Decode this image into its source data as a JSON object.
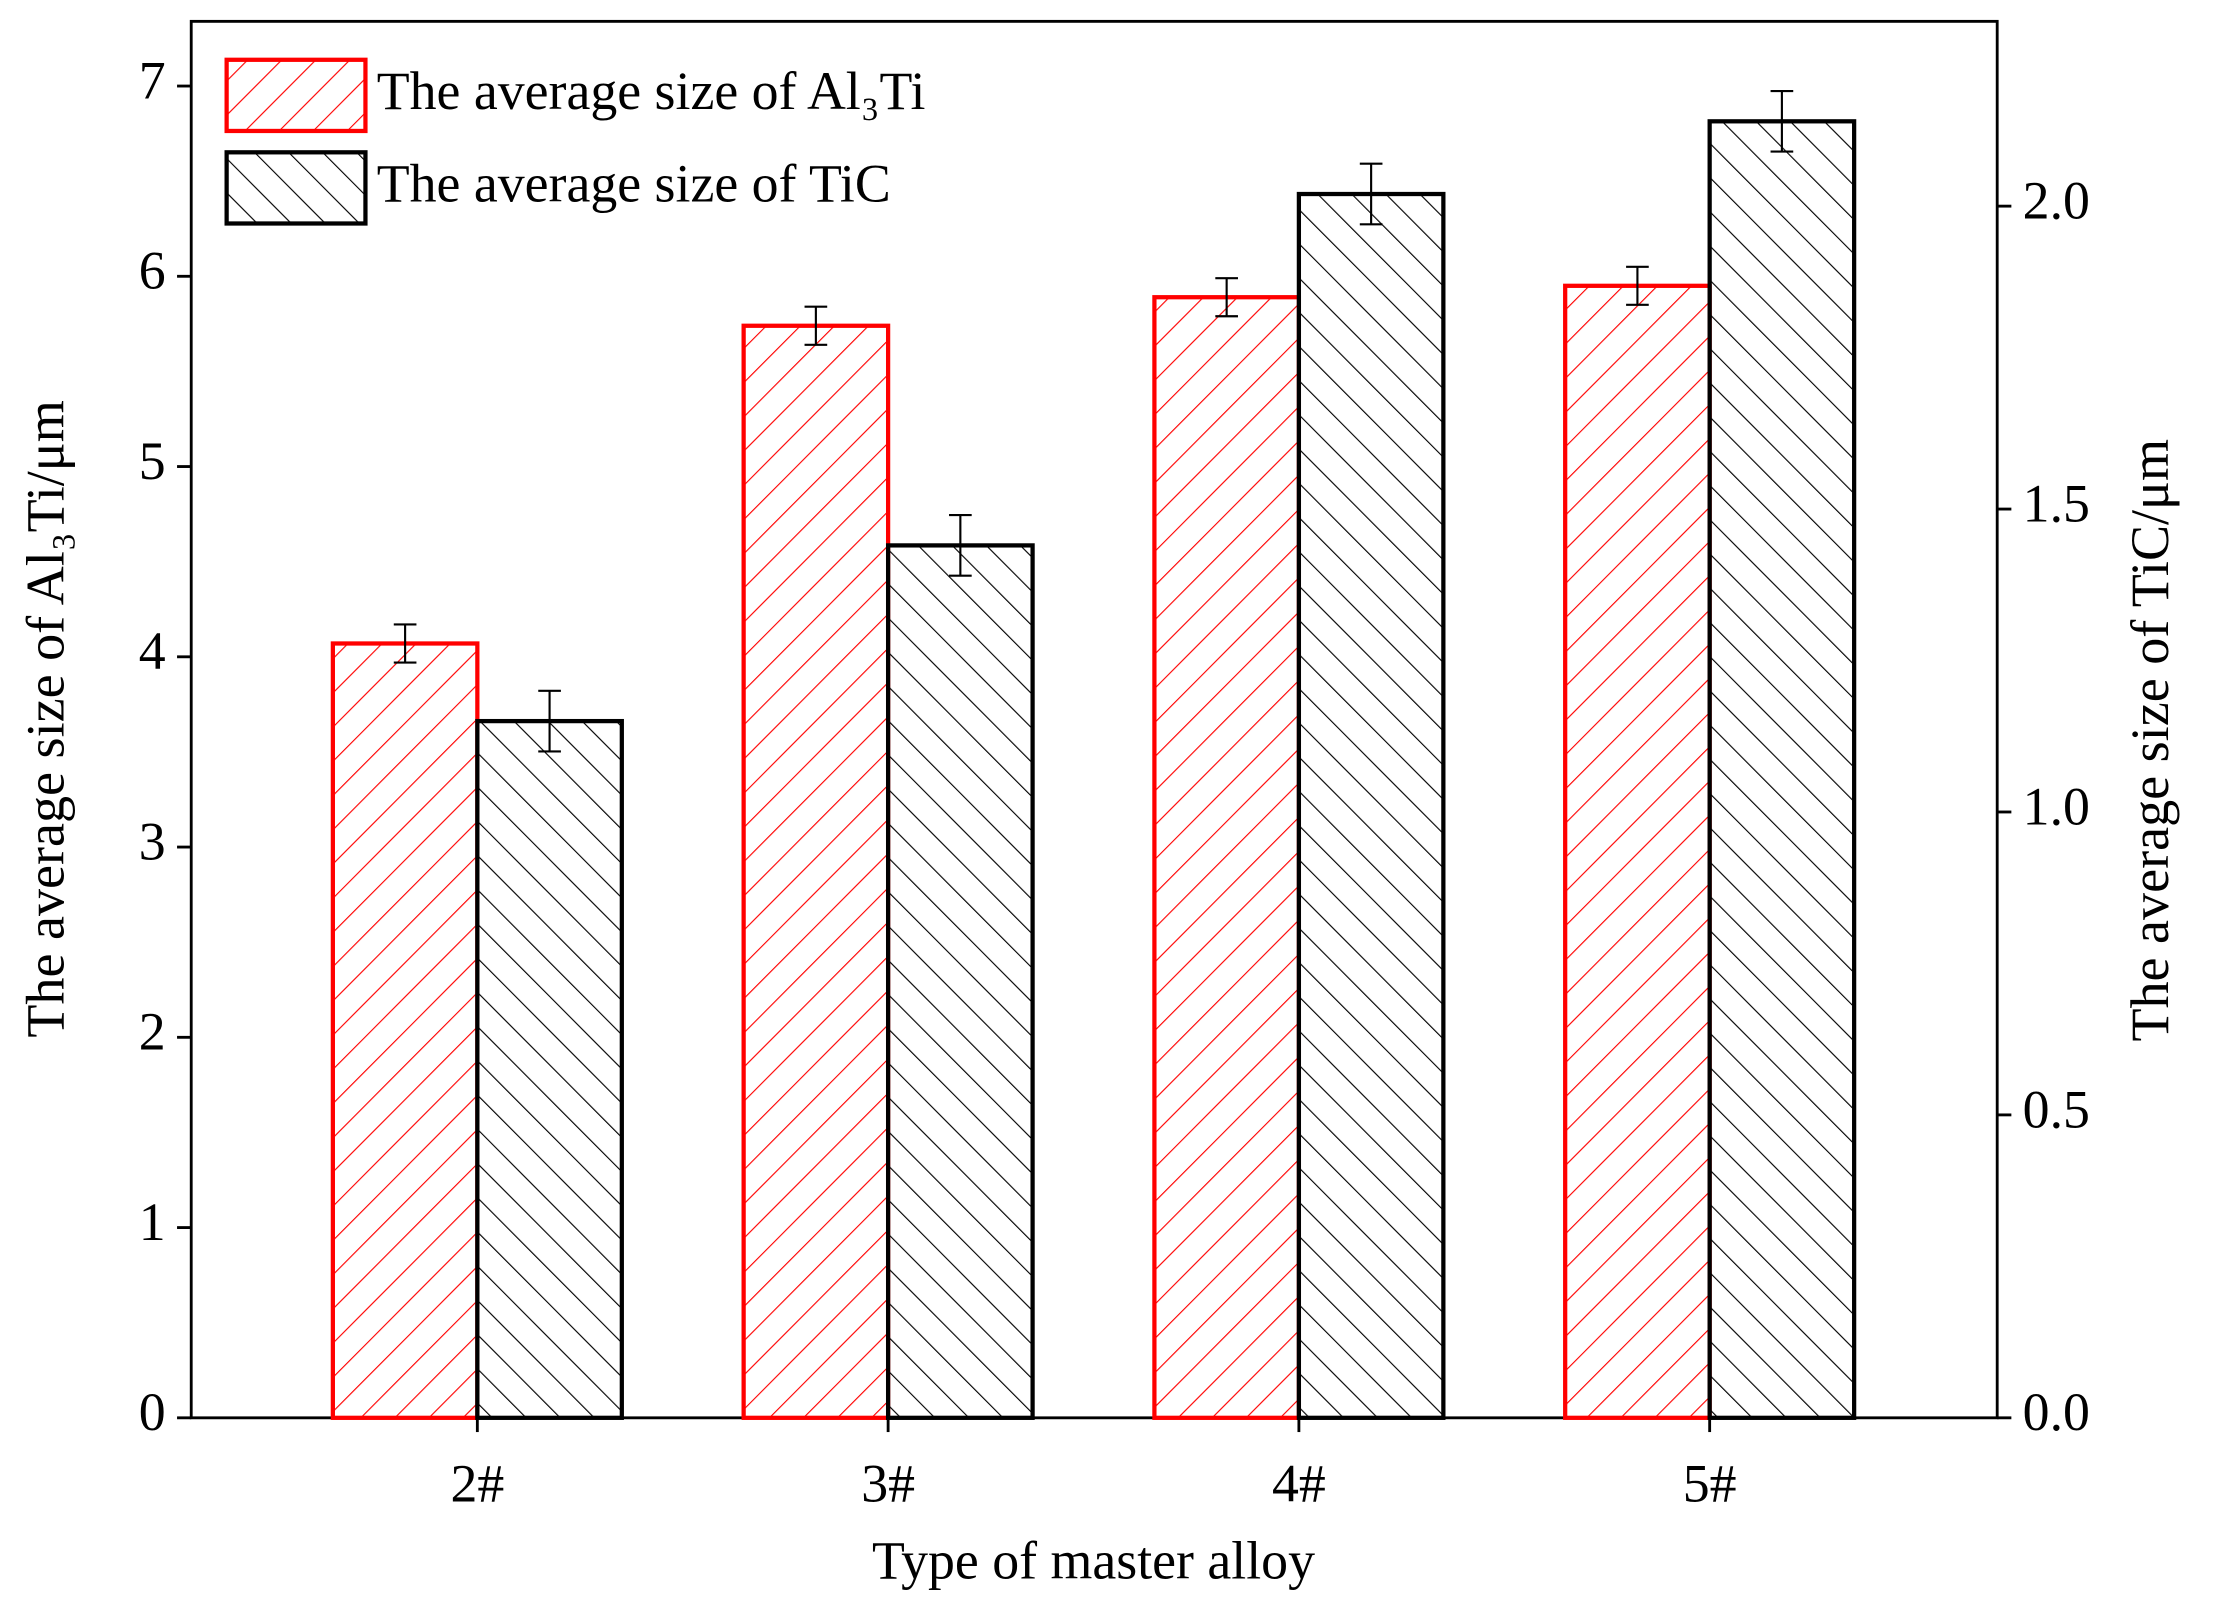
{
  "chart_data": {
    "type": "bar",
    "x_label": "Type of master alloy",
    "y_label": "The average size of Al₃Ti/μm",
    "y2_label": "The average size of TiC/μm",
    "categories": [
      "2#",
      "3#",
      "4#",
      "5#"
    ],
    "series": [
      {
        "name": "The average size of Al₃Ti",
        "color": "#ff0000",
        "hatch": "/",
        "axis": "y",
        "values": [
          4.07,
          5.74,
          5.89,
          5.95
        ],
        "errors": [
          0.1,
          0.1,
          0.1,
          0.1
        ]
      },
      {
        "name": "The average size of TiC",
        "color": "#000000",
        "hatch": "\\",
        "axis": "y2",
        "values": [
          1.15,
          1.44,
          2.02,
          2.14
        ],
        "errors": [
          0.05,
          0.05,
          0.05,
          0.05
        ]
      }
    ],
    "ylim": [
      0,
      7.34
    ],
    "yticks": [
      0,
      1,
      2,
      3,
      4,
      5,
      6,
      7
    ],
    "y2lim": [
      0,
      2.305
    ],
    "y2ticks": [
      {
        "value": 0,
        "label": "0.0"
      },
      {
        "value": 0.5,
        "label": "0.5"
      },
      {
        "value": 1,
        "label": "1.0"
      },
      {
        "value": 1.5,
        "label": "1.5"
      },
      {
        "value": 2,
        "label": "2.0"
      }
    ],
    "legend": "upper left",
    "grid": false
  }
}
